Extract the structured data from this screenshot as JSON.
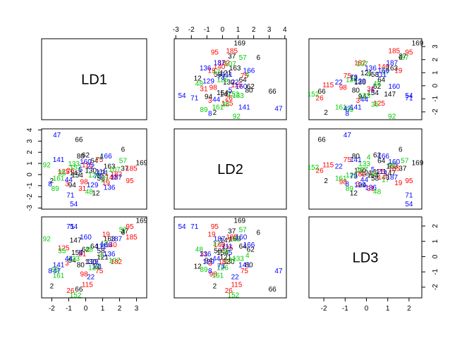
{
  "chart_data": {
    "type": "scatter",
    "title": "",
    "variables": [
      "LD1",
      "LD2",
      "LD3"
    ],
    "ranges": {
      "LD1": [
        -2.6,
        3.6
      ],
      "LD2": [
        -3.1,
        4.1
      ],
      "LD3": [
        -2.7,
        2.6
      ]
    },
    "ticks": {
      "LD1": [
        -2,
        -1,
        0,
        1,
        2,
        3
      ],
      "LD2": [
        -3,
        -2,
        -1,
        0,
        1,
        2,
        3,
        4
      ],
      "LD3": [
        -2,
        -1,
        0,
        1,
        2
      ]
    },
    "groups": [
      {
        "name": "group-black",
        "color": "#000000"
      },
      {
        "name": "group-red",
        "color": "#ff0000"
      },
      {
        "name": "group-green",
        "color": "#00cd00"
      },
      {
        "name": "group-blue",
        "color": "#0000ff"
      }
    ],
    "points": [
      {
        "label": "169",
        "group": 0,
        "LD1": 3.3,
        "LD2": 1.1,
        "LD3": 2.4
      },
      {
        "label": "37",
        "group": 0,
        "LD1": 2.3,
        "LD2": 0.6,
        "LD3": 1.7
      },
      {
        "label": "6",
        "group": 0,
        "LD1": 2.2,
        "LD2": 2.3,
        "LD3": 1.6
      },
      {
        "label": "163",
        "group": 0,
        "LD1": 1.4,
        "LD2": 0.8,
        "LD3": 1.2
      },
      {
        "label": "64",
        "group": 0,
        "LD1": 0.5,
        "LD2": 1.3,
        "LD3": 0.7
      },
      {
        "label": "154",
        "group": 0,
        "LD1": -0.5,
        "LD2": 0.0,
        "LD3": 0.3
      },
      {
        "label": "2",
        "group": 0,
        "LD1": -2.0,
        "LD2": -0.5,
        "LD3": -1.9
      },
      {
        "label": "62",
        "group": 0,
        "LD1": 0.0,
        "LD2": 1.8,
        "LD3": 0.5
      },
      {
        "label": "80",
        "group": 0,
        "LD1": -0.3,
        "LD2": 1.7,
        "LD3": -0.5
      },
      {
        "label": "147",
        "group": 0,
        "LD1": -0.6,
        "LD2": 0.2,
        "LD3": 1.1
      },
      {
        "label": "130",
        "group": 0,
        "LD1": 0.3,
        "LD2": 0.4,
        "LD3": -0.3
      },
      {
        "label": "94",
        "group": 0,
        "LD1": -0.8,
        "LD2": -0.9,
        "LD3": -0.2
      },
      {
        "label": "58",
        "group": 0,
        "LD1": 0.9,
        "LD2": -0.3,
        "LD3": 0.4
      },
      {
        "label": "121",
        "group": 0,
        "LD1": 1.0,
        "LD2": 0.2,
        "LD3": 0.0
      },
      {
        "label": "12",
        "group": 0,
        "LD1": 0.6,
        "LD2": -1.6,
        "LD3": -0.6
      },
      {
        "label": "66",
        "group": 0,
        "LD1": -0.4,
        "LD2": 3.2,
        "LD3": -2.1
      },
      {
        "label": "185",
        "group": 1,
        "LD1": 2.7,
        "LD2": 0.6,
        "LD3": 1.3
      },
      {
        "label": "95",
        "group": 1,
        "LD1": 2.6,
        "LD2": -0.5,
        "LD3": 2.0
      },
      {
        "label": "26",
        "group": 1,
        "LD1": -0.9,
        "LD2": 0.4,
        "LD3": -2.2
      },
      {
        "label": "115",
        "group": 1,
        "LD1": 0.1,
        "LD2": 0.9,
        "LD3": -1.8
      },
      {
        "label": "19",
        "group": 1,
        "LD1": 1.2,
        "LD2": -0.7,
        "LD3": 1.5
      },
      {
        "label": "182",
        "group": 1,
        "LD1": 1.8,
        "LD2": 0.1,
        "LD3": -0.3
      },
      {
        "label": "125",
        "group": 1,
        "LD1": -1.3,
        "LD2": 0.3,
        "LD3": 0.6
      },
      {
        "label": "31",
        "group": 1,
        "LD1": -0.2,
        "LD2": -1.2,
        "LD3": 0.2
      },
      {
        "label": "75",
        "group": 1,
        "LD1": 0.8,
        "LD2": 1.4,
        "LD3": -0.9
      },
      {
        "label": "98",
        "group": 1,
        "LD1": -0.1,
        "LD2": -0.6,
        "LD3": -1.1
      },
      {
        "label": "140",
        "group": 1,
        "LD1": 1.5,
        "LD2": -0.2,
        "LD3": 0.8
      },
      {
        "label": "3",
        "group": 1,
        "LD1": -1.1,
        "LD2": -0.8,
        "LD3": -0.4
      },
      {
        "label": "57",
        "group": 2,
        "LD1": 2.2,
        "LD2": 1.3,
        "LD3": 1.8
      },
      {
        "label": "92",
        "group": 2,
        "LD1": -2.3,
        "LD2": 0.9,
        "LD3": 1.2
      },
      {
        "label": "89",
        "group": 2,
        "LD1": -1.8,
        "LD2": -1.2,
        "LD3": -0.8
      },
      {
        "label": "152",
        "group": 2,
        "LD1": -0.6,
        "LD2": 0.7,
        "LD3": -2.5
      },
      {
        "label": "35",
        "group": 2,
        "LD1": -1.4,
        "LD2": 0.2,
        "LD3": 0.4
      },
      {
        "label": "126",
        "group": 2,
        "LD1": 0.5,
        "LD2": 0.0,
        "LD3": -0.7
      },
      {
        "label": "17",
        "group": 2,
        "LD1": 1.1,
        "LD2": -0.4,
        "LD3": 0.9
      },
      {
        "label": "133",
        "group": 2,
        "LD1": -0.7,
        "LD2": 1.0,
        "LD3": -0.1
      },
      {
        "label": "48",
        "group": 2,
        "LD1": 0.2,
        "LD2": -1.5,
        "LD3": 0.5
      },
      {
        "label": "107",
        "group": 2,
        "LD1": 1.7,
        "LD2": 0.5,
        "LD3": -0.2
      },
      {
        "label": "161",
        "group": 2,
        "LD1": -1.6,
        "LD2": -0.3,
        "LD3": -1.2
      },
      {
        "label": "4",
        "group": 2,
        "LD1": 0.9,
        "LD2": 1.6,
        "LD3": 0.1
      },
      {
        "label": "47",
        "group": 3,
        "LD1": -1.7,
        "LD2": 3.6,
        "LD3": -0.9
      },
      {
        "label": "71",
        "group": 3,
        "LD1": -0.9,
        "LD2": -1.8,
        "LD3": 2.0
      },
      {
        "label": "54",
        "group": 3,
        "LD1": -0.7,
        "LD2": -2.6,
        "LD3": 2.0
      },
      {
        "label": "8",
        "group": 3,
        "LD1": -2.1,
        "LD2": -0.8,
        "LD3": -0.9
      },
      {
        "label": "166",
        "group": 3,
        "LD1": 1.2,
        "LD2": 1.7,
        "LD3": 0.8
      },
      {
        "label": "187",
        "group": 3,
        "LD1": 1.8,
        "LD2": -0.2,
        "LD3": 1.2
      },
      {
        "label": "111",
        "group": 3,
        "LD1": 0.9,
        "LD2": 0.3,
        "LD3": 0.7
      },
      {
        "label": "141",
        "group": 3,
        "LD1": -1.6,
        "LD2": 1.4,
        "LD3": -0.5
      },
      {
        "label": "129",
        "group": 3,
        "LD1": 0.4,
        "LD2": -0.9,
        "LD3": -0.3
      },
      {
        "label": "5",
        "group": 3,
        "LD1": -0.3,
        "LD2": 0.5,
        "LD3": 0.3
      },
      {
        "label": "73",
        "group": 3,
        "LD1": 0.7,
        "LD2": -0.1,
        "LD3": -0.6
      },
      {
        "label": "160",
        "group": 3,
        "LD1": 0.0,
        "LD2": 1.2,
        "LD3": 1.3
      },
      {
        "label": "44",
        "group": 3,
        "LD1": -1.0,
        "LD2": -0.4,
        "LD3": -0.1
      },
      {
        "label": "136",
        "group": 3,
        "LD1": 1.4,
        "LD2": -1.1,
        "LD3": 0.2
      },
      {
        "label": "22",
        "group": 3,
        "LD1": 0.3,
        "LD2": 0.8,
        "LD3": -1.3
      }
    ]
  }
}
